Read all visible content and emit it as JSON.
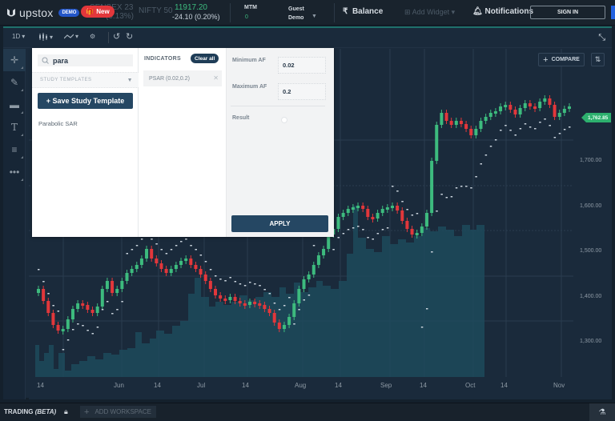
{
  "topbar": {
    "brand": "upstox",
    "demo_badge": "DEMO",
    "new_badge": "New",
    "ghost_ticker_line1": "SENSEX 23",
    "ghost_ticker_line2": "(0.13%)",
    "nifty_label": "NIFTY 50",
    "nifty_price": "11917.20",
    "nifty_change": "-24.10 (0.20%)",
    "mtm_label": "MTM",
    "mtm_value": "0",
    "guest_line1": "Guest",
    "guest_line2": "Demo",
    "balance_label": "Balance",
    "add_widget_label": "Add Widget",
    "notifications_label": "Notifications",
    "signin_label": "SIGN IN",
    "colors": {
      "accent_green": "#3dbb7e",
      "new_red": "#e2373b",
      "demo_blue": "#2356c8"
    }
  },
  "toolbar": {
    "interval": "1D",
    "chart_type_icon": "candles-icon",
    "indicator_icon": "line-study-icon",
    "settings_icon": "gear-icon",
    "undo_icon": "undo-icon",
    "redo_icon": "redo-icon",
    "expand_icon": "collapse-icon"
  },
  "left_tools": [
    {
      "name": "crosshair",
      "icon": "crosshair-icon",
      "active": true
    },
    {
      "name": "draw",
      "icon": "pencil-icon"
    },
    {
      "name": "shapes",
      "icon": "rectangle-icon"
    },
    {
      "name": "text",
      "icon": "text-icon"
    },
    {
      "name": "fibonacci",
      "icon": "lines-icon"
    },
    {
      "name": "more",
      "icon": "more-icon"
    }
  ],
  "study_panel": {
    "search_value": "para",
    "study_templates_label": "STUDY TEMPLATES",
    "save_template_label": "+ Save Study Template",
    "search_results": [
      "Parabolic SAR"
    ],
    "indicators_title": "INDICATORS",
    "clear_all_label": "Clear all",
    "active_indicators": [
      "PSAR (0.02,0.2)"
    ],
    "params": {
      "min_af_label": "Minimum AF",
      "min_af_value": "0.02",
      "max_af_label": "Maximum AF",
      "max_af_value": "0.2",
      "result_label": "Result"
    },
    "apply_label": "APPLY"
  },
  "chart": {
    "compare_label": "COMPARE",
    "last_price": "1,762.85",
    "y_ticks": [
      "1,700.00",
      "1,600.00",
      "1,500.00",
      "1,400.00",
      "1,300.00"
    ],
    "x_ticks": [
      "14",
      "Jun",
      "14",
      "Jul",
      "14",
      "Aug",
      "14",
      "Sep",
      "14",
      "Oct",
      "14",
      "Nov"
    ],
    "colors": {
      "up": "#3dbb7e",
      "down": "#e2373b",
      "volume": "#1d4a5c",
      "psar": "#c9d3dc",
      "background": "#1a2a3b"
    }
  },
  "bottombar": {
    "trading_label": "TRADING",
    "beta_label": "(BETA)",
    "add_workspace_label": "ADD WORKSPACE"
  }
}
